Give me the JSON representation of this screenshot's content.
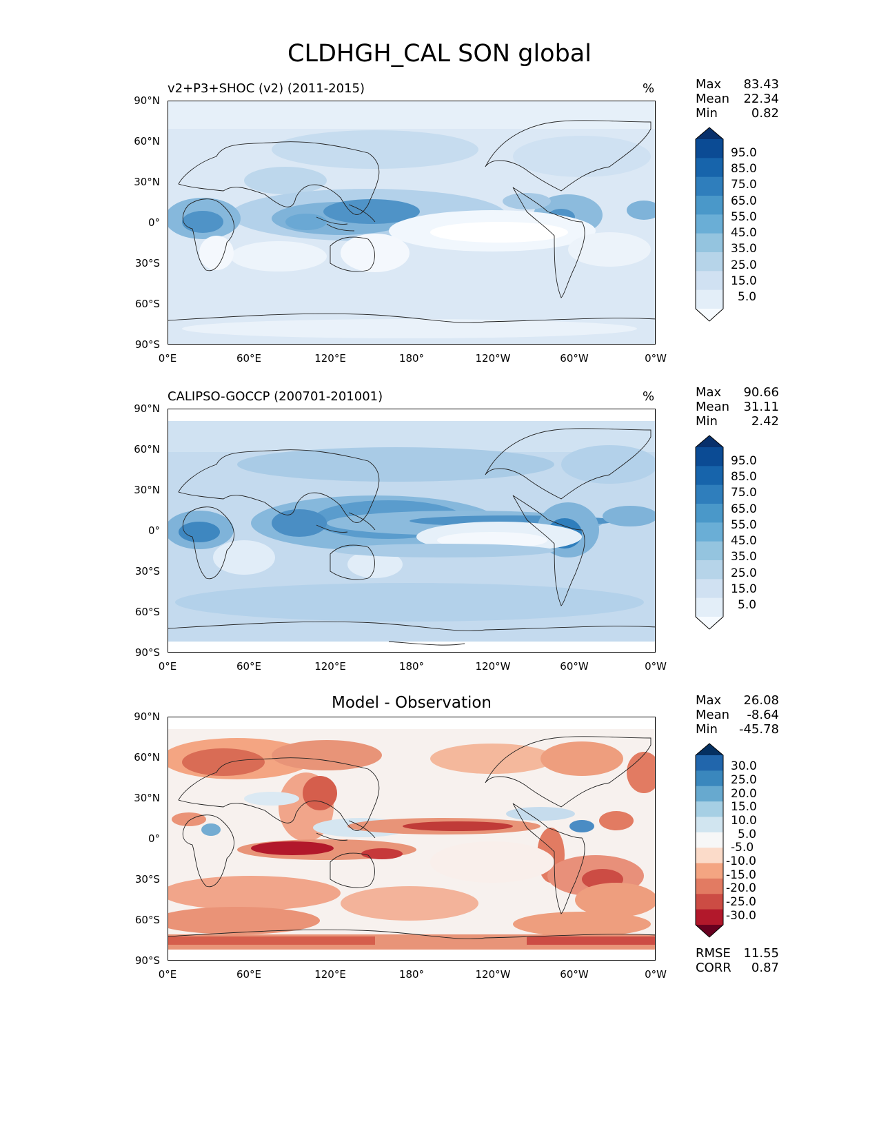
{
  "title": "CLDHGH_CAL SON global",
  "lat_ticks": [
    "90°N",
    "60°N",
    "30°N",
    "0°",
    "30°S",
    "60°S",
    "90°S"
  ],
  "lon_ticks": [
    "0°E",
    "60°E",
    "120°E",
    "180°",
    "120°W",
    "60°W",
    "0°W"
  ],
  "stat_labels": {
    "max": "Max",
    "mean": "Mean",
    "min": "Min",
    "rmse": "RMSE",
    "corr": "CORR"
  },
  "panels": [
    {
      "title": "v2+P3+SHOC (v2) (2011-2015)",
      "units": "%",
      "stats": {
        "max": "83.43",
        "mean": "22.34",
        "min": "0.82"
      },
      "colorbar": {
        "labels": [
          "95.0",
          "85.0",
          "75.0",
          "65.0",
          "55.0",
          "45.0",
          "35.0",
          "25.0",
          "15.0",
          "5.0"
        ],
        "colors": [
          "#08306b",
          "#0b4b94",
          "#1764ab",
          "#2f7ebc",
          "#4a98c9",
          "#6aaed6",
          "#94c4df",
          "#b6d4e9",
          "#d0e1f2",
          "#e3eef8",
          "#f7fbff"
        ]
      }
    },
    {
      "title": "CALIPSO-GOCCP (200701-201001)",
      "units": "%",
      "stats": {
        "max": "90.66",
        "mean": "31.11",
        "min": "2.42"
      },
      "colorbar": {
        "labels": [
          "95.0",
          "85.0",
          "75.0",
          "65.0",
          "55.0",
          "45.0",
          "35.0",
          "25.0",
          "15.0",
          "5.0"
        ],
        "colors": [
          "#08306b",
          "#0b4b94",
          "#1764ab",
          "#2f7ebc",
          "#4a98c9",
          "#6aaed6",
          "#94c4df",
          "#b6d4e9",
          "#d0e1f2",
          "#e3eef8",
          "#f7fbff"
        ]
      }
    },
    {
      "title": "Model - Observation",
      "units": "",
      "stats": {
        "max": "26.08",
        "mean": "-8.64",
        "min": "-45.78"
      },
      "extra_stats": {
        "rmse": "11.55",
        "corr": "0.87"
      },
      "colorbar": {
        "labels": [
          "30.0",
          "25.0",
          "20.0",
          "15.0",
          "10.0",
          "5.0",
          "-5.0",
          "-10.0",
          "-15.0",
          "-20.0",
          "-25.0",
          "-30.0"
        ],
        "colors": [
          "#053061",
          "#2166ac",
          "#3a87bd",
          "#67a9cf",
          "#a6cfe4",
          "#d1e5f0",
          "#f7f7f7",
          "#fbdbc9",
          "#f4a582",
          "#e27b62",
          "#cc4c44",
          "#b2182b",
          "#67001f"
        ]
      }
    }
  ]
}
